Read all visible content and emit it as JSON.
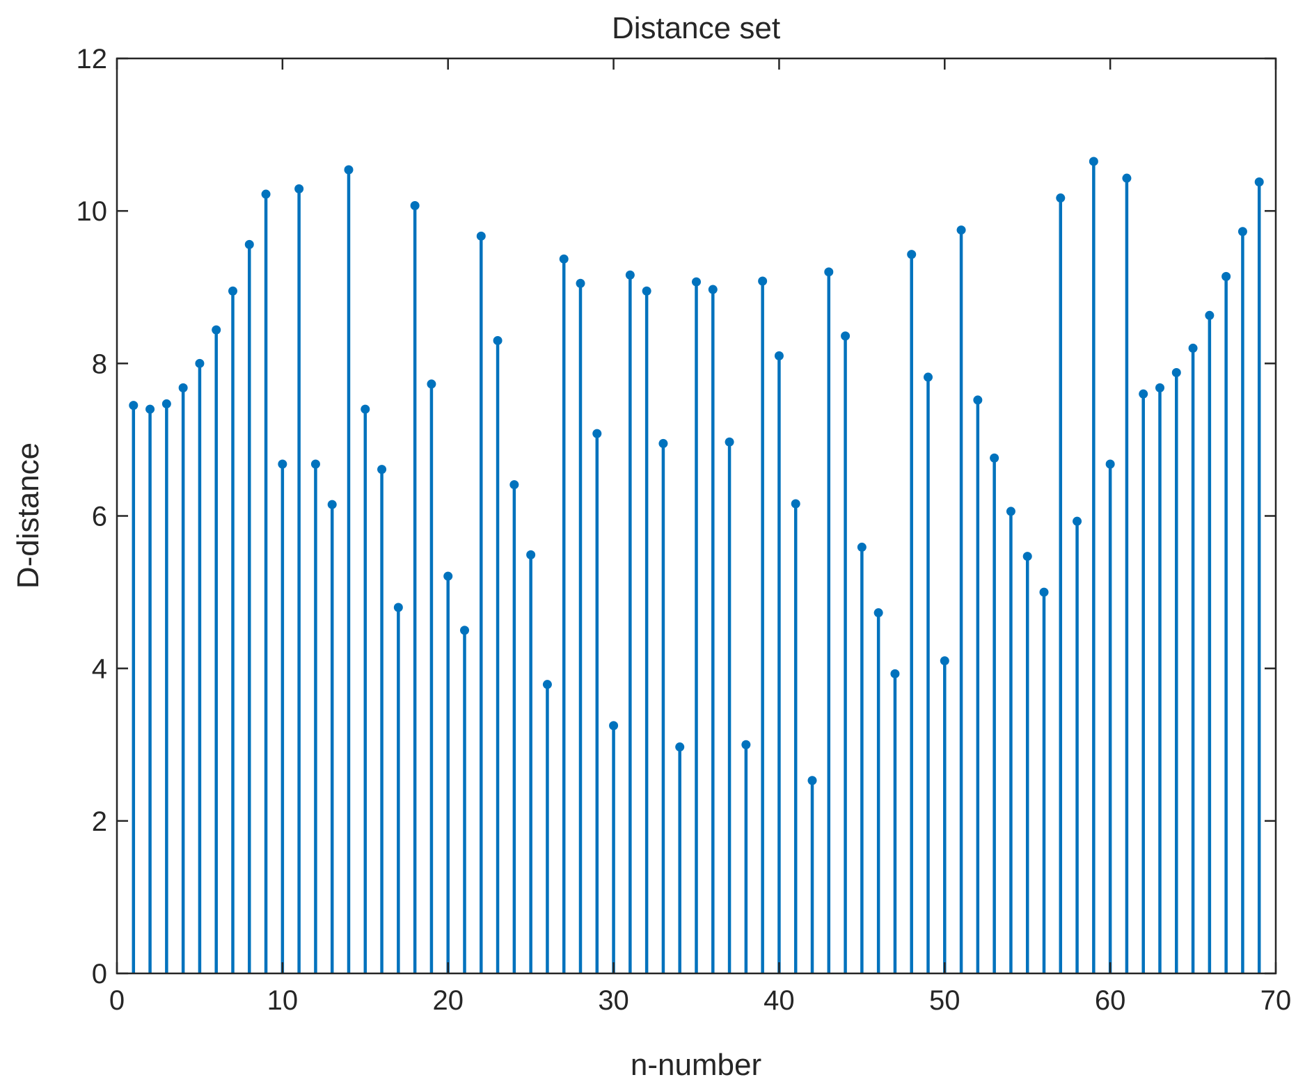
{
  "chart_data": {
    "type": "stem",
    "title": "Distance set",
    "xlabel": "n-number",
    "ylabel": "D-distance",
    "xlim": [
      0,
      70
    ],
    "ylim": [
      0,
      12
    ],
    "xticks": [
      0,
      10,
      20,
      30,
      40,
      50,
      60,
      70
    ],
    "yticks": [
      0,
      2,
      4,
      6,
      8,
      10,
      12
    ],
    "grid": false,
    "box": true,
    "color": "#0072BD",
    "x": [
      1,
      2,
      3,
      4,
      5,
      6,
      7,
      8,
      9,
      10,
      11,
      12,
      13,
      14,
      15,
      16,
      17,
      18,
      19,
      20,
      21,
      22,
      23,
      24,
      25,
      26,
      27,
      28,
      29,
      30,
      31,
      32,
      33,
      34,
      35,
      36,
      37,
      38,
      39,
      40,
      41,
      42,
      43,
      44,
      45,
      46,
      47,
      48,
      49,
      50,
      51,
      52,
      53,
      54,
      55,
      56,
      57,
      58,
      59,
      60,
      61,
      62,
      63,
      64,
      65,
      66,
      67,
      68,
      69
    ],
    "values": [
      7.45,
      7.4,
      7.47,
      7.68,
      8.0,
      8.44,
      8.95,
      9.56,
      10.22,
      6.68,
      10.29,
      6.68,
      6.15,
      10.54,
      7.4,
      6.61,
      4.8,
      10.07,
      7.73,
      5.21,
      4.5,
      9.67,
      8.3,
      6.41,
      5.49,
      3.79,
      9.37,
      9.05,
      7.08,
      3.25,
      9.16,
      8.95,
      6.95,
      2.97,
      9.07,
      8.97,
      6.97,
      3.0,
      9.08,
      8.1,
      6.16,
      2.53,
      9.2,
      8.36,
      5.59,
      4.73,
      3.93,
      9.43,
      7.82,
      4.1,
      9.75,
      7.52,
      6.76,
      6.06,
      5.47,
      5.0,
      10.17,
      5.93,
      10.65,
      6.68,
      10.43,
      7.6,
      7.68,
      7.88,
      8.2,
      8.63,
      9.14,
      9.73,
      10.38
    ]
  }
}
